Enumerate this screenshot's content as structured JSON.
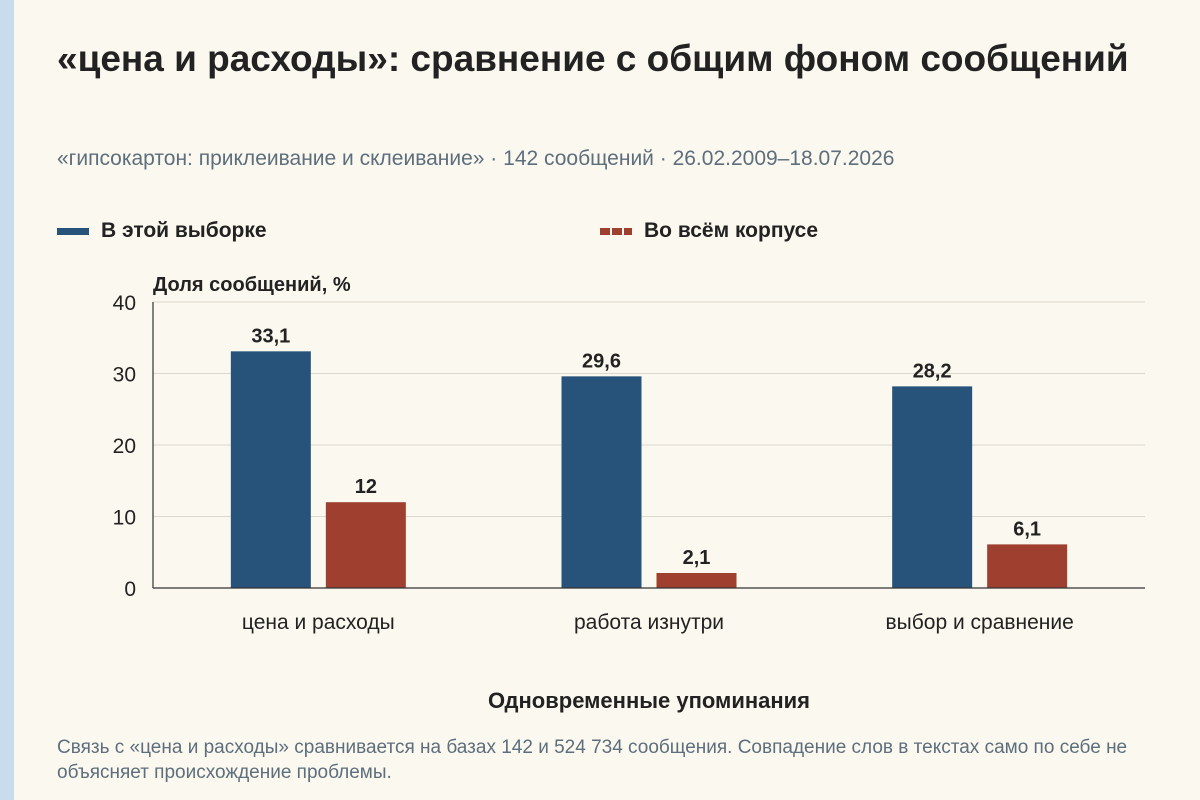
{
  "title": "«цена и расходы»: сравнение с общим фоном сообщений",
  "subtitle": "«гипсокартон: приклеивание и склеивание» · 142 сообщений · 26.02.2009–18.07.2026",
  "footnote": "Связь с «цена и расходы» сравнивается на базах 142 и 524 734 сообщения. Совпадение слов в текстах само по себе не объясняет происхождение проблемы.",
  "chart_data": {
    "type": "bar",
    "categories": [
      "цена и расходы",
      "работа изнутри",
      "выбор и сравнение"
    ],
    "series": [
      {
        "name": "В этой выборке",
        "values": [
          33.1,
          29.6,
          28.2
        ],
        "labels": [
          "33,1",
          "29,6",
          "28,2"
        ],
        "color": "#27537a"
      },
      {
        "name": "Во всём корпусе",
        "values": [
          12,
          2.1,
          6.1
        ],
        "labels": [
          "12",
          "2,1",
          "6,1"
        ],
        "color": "#9e3f2f"
      }
    ],
    "ylabel": "Доля сообщений, %",
    "xlabel": "Одновременные упоминания",
    "ylim": [
      0,
      40
    ],
    "yticks": [
      0,
      10,
      20,
      30,
      40
    ],
    "grid": true,
    "legend_position": "top"
  }
}
